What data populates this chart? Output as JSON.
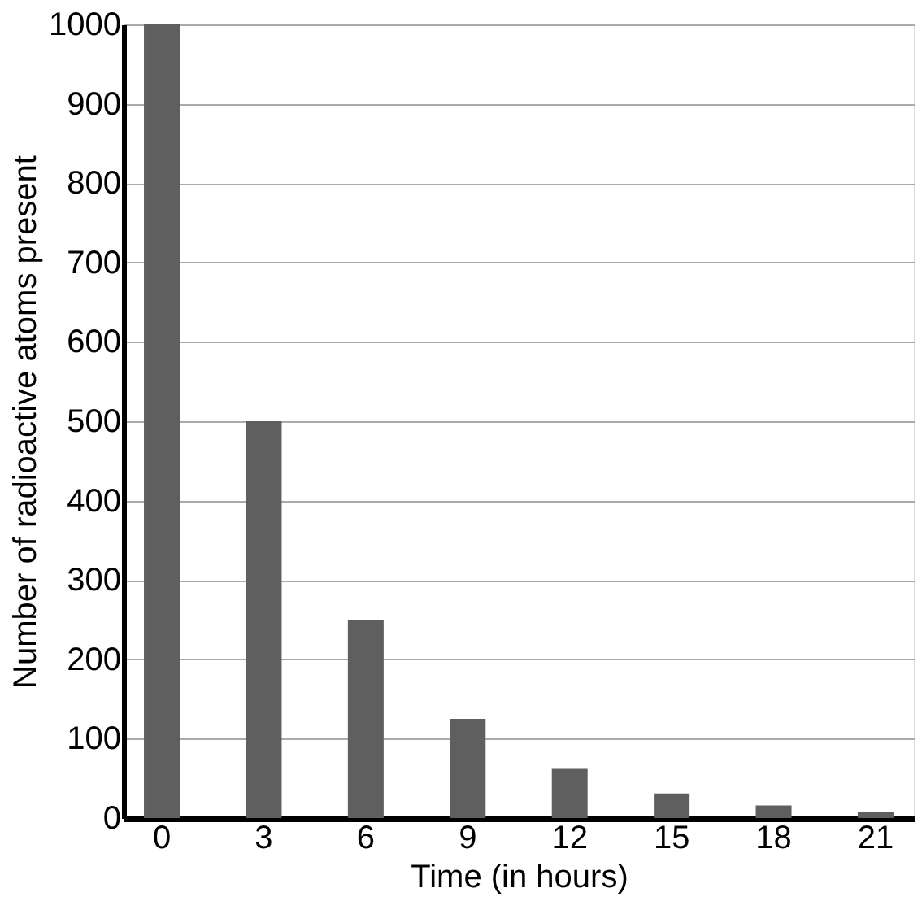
{
  "chart_data": {
    "type": "bar",
    "xlabel": "Time (in hours)",
    "ylabel": "Number of radioactive atoms present",
    "categories": [
      "0",
      "3",
      "6",
      "9",
      "12",
      "15",
      "18",
      "21"
    ],
    "values": [
      1000,
      500,
      250,
      125,
      62,
      31,
      16,
      8
    ],
    "color": "#5f5f5f",
    "ylim": [
      0,
      1000
    ],
    "yticks": [
      0,
      100,
      200,
      300,
      400,
      500,
      600,
      700,
      800,
      900,
      1000
    ],
    "grid": "y"
  }
}
